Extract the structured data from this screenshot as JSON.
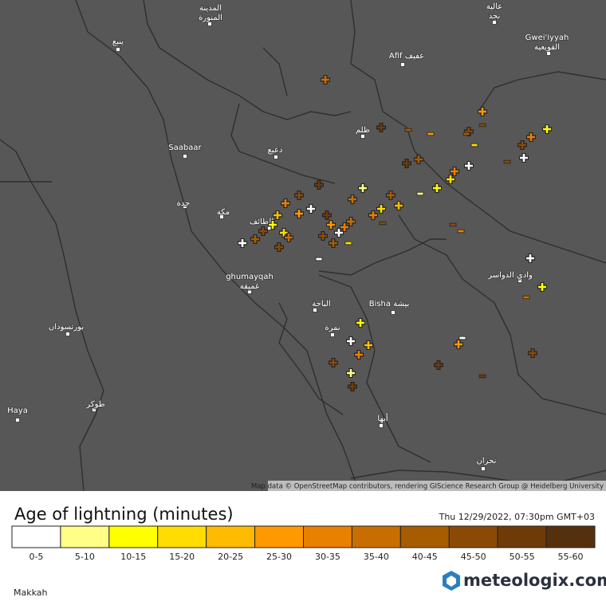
{
  "map": {
    "cities": [
      {
        "lines": [
          "المدينة",
          "المنورة"
        ]
      },
      {
        "lines": [
          "ينبع"
        ]
      },
      {
        "lines": [
          "Afif عفيف"
        ]
      },
      {
        "lines": [
          "Gwei'iyyah",
          "القويعية"
        ]
      },
      {
        "lines": [
          "عالية",
          "نجد"
        ]
      },
      {
        "lines": [
          "ظلم"
        ]
      },
      {
        "lines": [
          "دعبع"
        ]
      },
      {
        "lines": [
          "Saabaar"
        ]
      },
      {
        "lines": [
          "جدة"
        ]
      },
      {
        "lines": [
          "مكة"
        ]
      },
      {
        "lines": [
          "الطائف"
        ]
      },
      {
        "lines": [
          "ghumayqah",
          "غميقة"
        ]
      },
      {
        "lines": [
          "الباحة"
        ]
      },
      {
        "lines": [
          "Bisha بيشة"
        ]
      },
      {
        "lines": [
          "نمرة"
        ]
      },
      {
        "lines": [
          "وادي الدواسر"
        ]
      },
      {
        "lines": [
          "بورتسودان"
        ]
      },
      {
        "lines": [
          "طوكر"
        ]
      },
      {
        "lines": [
          "Haya"
        ]
      },
      {
        "lines": [
          "أبها"
        ]
      },
      {
        "lines": [
          "نجران"
        ]
      }
    ],
    "attribution": "Map data © OpenStreetMap contributors, rendering GIScience Research Group @ Heidelberg University"
  },
  "legend": {
    "title": "Age of lightning (minutes)",
    "timestamp": "Thu 12/29/2022, 07:30pm GMT+03",
    "bins": [
      {
        "label": "0-5",
        "color": "#ffffff"
      },
      {
        "label": "5-10",
        "color": "#ffff88"
      },
      {
        "label": "10-15",
        "color": "#ffff00"
      },
      {
        "label": "15-20",
        "color": "#ffdd00"
      },
      {
        "label": "20-25",
        "color": "#ffbb00"
      },
      {
        "label": "25-30",
        "color": "#ff9900"
      },
      {
        "label": "30-35",
        "color": "#e88000"
      },
      {
        "label": "35-40",
        "color": "#c86e00"
      },
      {
        "label": "40-45",
        "color": "#a85c00"
      },
      {
        "label": "45-50",
        "color": "#8a4a06"
      },
      {
        "label": "50-55",
        "color": "#6e3a08"
      },
      {
        "label": "55-60",
        "color": "#55300e"
      }
    ]
  },
  "footer": {
    "region": "Makkah",
    "brand": "meteologix.com"
  }
}
